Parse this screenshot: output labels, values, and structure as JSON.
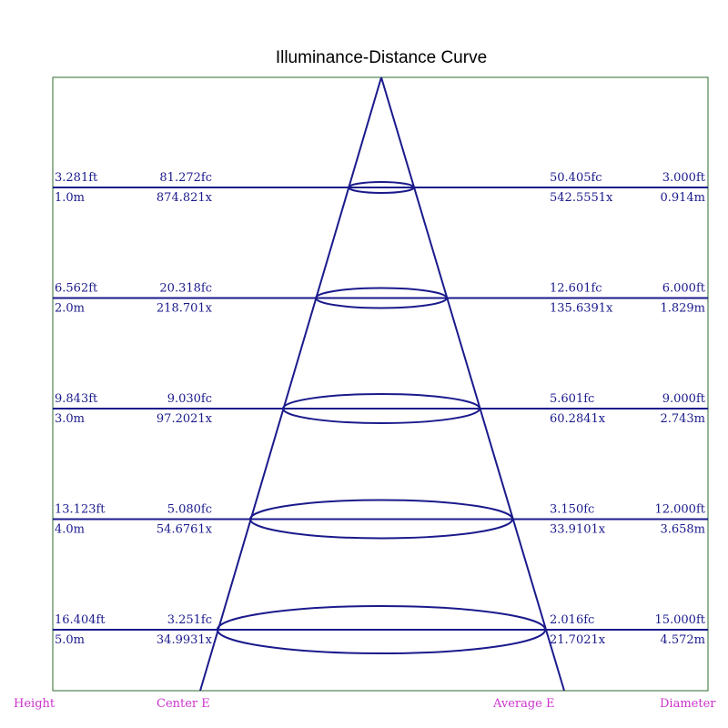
{
  "title": "Illuminance-Distance Curve",
  "colors": {
    "frame": "#2e6b2e",
    "lines": "#1a1a8c",
    "footer": "#cc33cc"
  },
  "rows": [
    {
      "height_ft": "3.281ft",
      "height_m": "1.0m",
      "center_fc": "81.272fc",
      "center_lx": "874.821x",
      "avg_fc": "50.405fc",
      "avg_lx": "542.5551x",
      "diam_ft": "3.000ft",
      "diam_m": "0.914m"
    },
    {
      "height_ft": "6.562ft",
      "height_m": "2.0m",
      "center_fc": "20.318fc",
      "center_lx": "218.701x",
      "avg_fc": "12.601fc",
      "avg_lx": "135.6391x",
      "diam_ft": "6.000ft",
      "diam_m": "1.829m"
    },
    {
      "height_ft": "9.843ft",
      "height_m": "3.0m",
      "center_fc": "9.030fc",
      "center_lx": "97.2021x",
      "avg_fc": "5.601fc",
      "avg_lx": "60.2841x",
      "diam_ft": "9.000ft",
      "diam_m": "2.743m"
    },
    {
      "height_ft": "13.123ft",
      "height_m": "4.0m",
      "center_fc": "5.080fc",
      "center_lx": "54.6761x",
      "avg_fc": "3.150fc",
      "avg_lx": "33.9101x",
      "diam_ft": "12.000ft",
      "diam_m": "3.658m"
    },
    {
      "height_ft": "16.404ft",
      "height_m": "5.0m",
      "center_fc": "3.251fc",
      "center_lx": "34.9931x",
      "avg_fc": "2.016fc",
      "avg_lx": "21.7021x",
      "diam_ft": "15.000ft",
      "diam_m": "4.572m"
    }
  ],
  "footer": {
    "height": "Height",
    "center": "Center E",
    "average": "Average E",
    "diameter": "Diameter"
  }
}
